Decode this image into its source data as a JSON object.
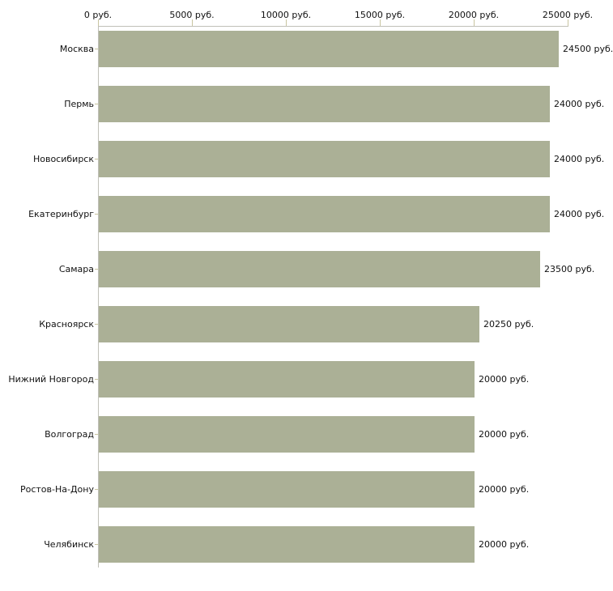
{
  "chart_data": {
    "type": "bar",
    "orientation": "horizontal",
    "title": "",
    "categories": [
      "Москва",
      "Пермь",
      "Новосибирск",
      "Екатеринбург",
      "Самара",
      "Красноярск",
      "Нижний Новгород",
      "Волгоград",
      "Ростов-На-Дону",
      "Челябинск"
    ],
    "values": [
      24500,
      24000,
      24000,
      24000,
      23500,
      20250,
      20000,
      20000,
      20000,
      20000
    ],
    "value_labels": [
      "24500 руб.",
      "24000 руб.",
      "24000 руб.",
      "24000 руб.",
      "23500 руб.",
      "20250 руб.",
      "20000 руб.",
      "20000 руб.",
      "20000 руб.",
      "20000 руб."
    ],
    "x_axis": {
      "position": "top",
      "min": 0,
      "max": 25000,
      "ticks": [
        0,
        5000,
        10000,
        15000,
        20000,
        25000
      ],
      "tick_labels": [
        "0 руб.",
        "5000 руб.",
        "10000 руб.",
        "15000 руб.",
        "20000 руб.",
        "25000 руб."
      ]
    },
    "unit": "руб.",
    "grid": false,
    "legend": false,
    "colors": {
      "bar_fill": "#abb096",
      "axis_line": "#c0c0b8",
      "tick_mark": "#c9c5a0",
      "text": "#111111",
      "background": "#ffffff"
    }
  }
}
